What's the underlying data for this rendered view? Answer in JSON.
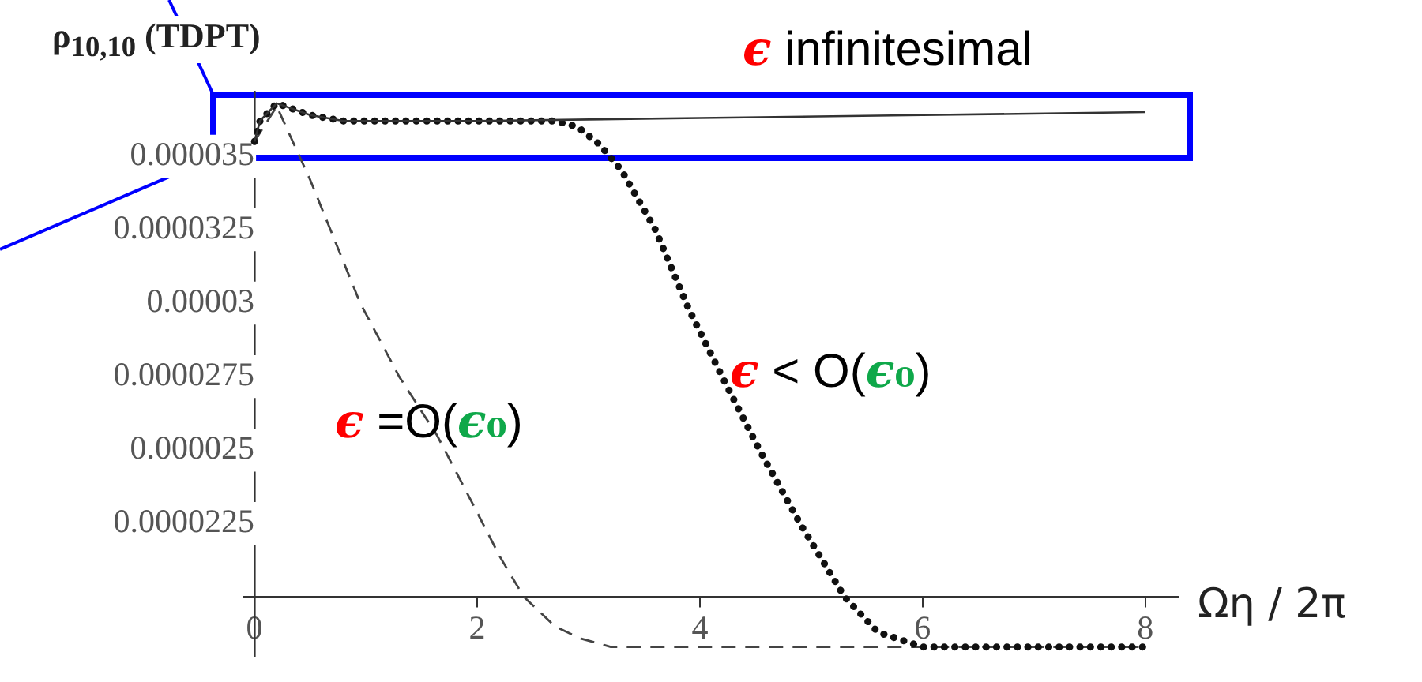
{
  "chart_data": {
    "type": "line",
    "ylabel": "ρ$_{10,10}$ (TDPT)",
    "xlabel": "Ωη / 2π",
    "xlim": [
      -0.1,
      8.3
    ],
    "ylim": [
      1.8e-05,
      3.72e-05
    ],
    "xticks": [
      0,
      2,
      4,
      6,
      8
    ],
    "yticks": [
      {
        "value": 2.25e-05,
        "label": "0.0000225"
      },
      {
        "value": 2.5e-05,
        "label": "0.000025"
      },
      {
        "value": 2.75e-05,
        "label": "0.0000275"
      },
      {
        "value": 3e-05,
        "label": "0.00003"
      },
      {
        "value": 3.25e-05,
        "label": "0.0000325"
      },
      {
        "value": 3.5e-05,
        "label": "0.000035"
      }
    ],
    "marker": "none",
    "series": [
      {
        "name": "ϵ infinitesimal",
        "color": "#333333",
        "line_style": "solid",
        "x": [
          0,
          0.05,
          0.2,
          0.5,
          0.8,
          2,
          4,
          6,
          8
        ],
        "values": [
          3.55e-05,
          3.62e-05,
          3.68e-05,
          3.64e-05,
          3.62e-05,
          3.62e-05,
          3.63e-05,
          3.64e-05,
          3.65e-05
        ]
      },
      {
        "name": "ϵ < O(ϵ₀)",
        "color": "#111111",
        "line_style": "dotted",
        "x": [
          0,
          0.05,
          0.2,
          0.5,
          0.8,
          2,
          2.7,
          2.9,
          3.1,
          3.3,
          3.6,
          3.9,
          4.2,
          4.55,
          4.9,
          5.3,
          5.6,
          6,
          8
        ],
        "values": [
          3.55e-05,
          3.62e-05,
          3.68e-05,
          3.64e-05,
          3.62e-05,
          3.62e-05,
          3.62e-05,
          3.6e-05,
          3.54e-05,
          3.45e-05,
          3.25e-05,
          2.98e-05,
          2.75e-05,
          2.49e-05,
          2.25e-05,
          2e-05,
          1.88e-05,
          1.83e-05,
          1.83e-05
        ]
      },
      {
        "name": "ϵ =O(ϵ₀)",
        "color": "#444444",
        "line_style": "dashed",
        "x": [
          0,
          0.2,
          0.5,
          0.95,
          1.3,
          1.64,
          1.97,
          2.2,
          2.42,
          2.7,
          2.92,
          3.2,
          8
        ],
        "values": [
          3.55e-05,
          3.67e-05,
          3.42e-05,
          3e-05,
          2.75e-05,
          2.55e-05,
          2.31e-05,
          2.14e-05,
          2e-05,
          1.9e-05,
          1.86e-05,
          1.83e-05,
          1.83e-05
        ]
      }
    ]
  }
}
